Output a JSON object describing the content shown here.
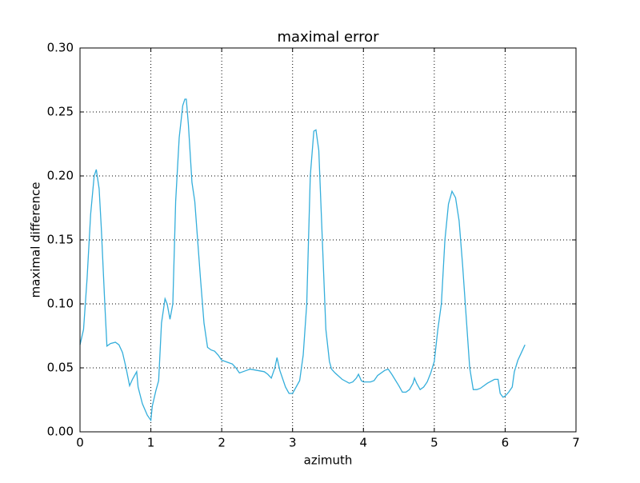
{
  "chart_data": {
    "type": "line",
    "title": "maximal error",
    "x_label": "azimuth",
    "y_label": "maximal difference",
    "x": [
      0.0,
      0.05,
      0.1,
      0.15,
      0.2,
      0.23,
      0.27,
      0.3,
      0.35,
      0.38,
      0.43,
      0.5,
      0.55,
      0.6,
      0.65,
      0.7,
      0.74,
      0.8,
      0.82,
      0.88,
      0.95,
      1.0,
      1.02,
      1.07,
      1.11,
      1.15,
      1.2,
      1.23,
      1.27,
      1.31,
      1.35,
      1.4,
      1.45,
      1.48,
      1.5,
      1.53,
      1.58,
      1.62,
      1.7,
      1.75,
      1.8,
      1.85,
      1.9,
      1.95,
      2.0,
      2.05,
      2.1,
      2.15,
      2.2,
      2.25,
      2.3,
      2.35,
      2.4,
      2.5,
      2.6,
      2.65,
      2.7,
      2.75,
      2.78,
      2.82,
      2.9,
      2.95,
      3.0,
      3.05,
      3.1,
      3.15,
      3.2,
      3.25,
      3.3,
      3.33,
      3.37,
      3.42,
      3.47,
      3.52,
      3.55,
      3.6,
      3.7,
      3.8,
      3.85,
      3.9,
      3.93,
      3.97,
      4.0,
      4.1,
      4.15,
      4.2,
      4.3,
      4.35,
      4.4,
      4.5,
      4.55,
      4.6,
      4.65,
      4.7,
      4.72,
      4.75,
      4.8,
      4.85,
      4.9,
      4.95,
      5.0,
      5.05,
      5.1,
      5.15,
      5.2,
      5.25,
      5.3,
      5.35,
      5.4,
      5.45,
      5.5,
      5.55,
      5.6,
      5.65,
      5.75,
      5.85,
      5.9,
      5.93,
      5.97,
      6.0,
      6.05,
      6.1,
      6.13,
      6.18,
      6.23,
      6.28
    ],
    "series": [
      {
        "color": "#34aedb",
        "values": [
          0.068,
          0.08,
          0.12,
          0.17,
          0.2,
          0.205,
          0.19,
          0.16,
          0.1,
          0.067,
          0.069,
          0.07,
          0.068,
          0.062,
          0.05,
          0.036,
          0.041,
          0.047,
          0.035,
          0.022,
          0.013,
          0.009,
          0.02,
          0.032,
          0.04,
          0.085,
          0.104,
          0.1,
          0.088,
          0.1,
          0.18,
          0.23,
          0.255,
          0.26,
          0.26,
          0.24,
          0.195,
          0.18,
          0.12,
          0.085,
          0.066,
          0.064,
          0.063,
          0.06,
          0.056,
          0.055,
          0.054,
          0.053,
          0.05,
          0.046,
          0.047,
          0.048,
          0.049,
          0.048,
          0.047,
          0.045,
          0.042,
          0.05,
          0.058,
          0.048,
          0.035,
          0.03,
          0.03,
          0.035,
          0.04,
          0.06,
          0.1,
          0.2,
          0.235,
          0.236,
          0.22,
          0.15,
          0.08,
          0.055,
          0.049,
          0.046,
          0.041,
          0.038,
          0.039,
          0.042,
          0.045,
          0.04,
          0.039,
          0.039,
          0.04,
          0.044,
          0.048,
          0.049,
          0.045,
          0.036,
          0.031,
          0.031,
          0.033,
          0.038,
          0.042,
          0.038,
          0.033,
          0.035,
          0.039,
          0.046,
          0.055,
          0.08,
          0.1,
          0.15,
          0.178,
          0.188,
          0.183,
          0.165,
          0.13,
          0.09,
          0.05,
          0.033,
          0.033,
          0.034,
          0.038,
          0.041,
          0.041,
          0.03,
          0.027,
          0.028,
          0.031,
          0.035,
          0.047,
          0.056,
          0.062,
          0.068
        ]
      }
    ],
    "xlim": [
      0,
      7
    ],
    "xticks": [
      0,
      1,
      2,
      3,
      4,
      5,
      6,
      7
    ],
    "ylim": [
      0,
      0.3
    ],
    "yticks": [
      {
        "value": 0,
        "label": "0.00"
      },
      {
        "value": 0.05,
        "label": "0.05"
      },
      {
        "value": 0.1,
        "label": "0.10"
      },
      {
        "value": 0.15,
        "label": "0.15"
      },
      {
        "value": 0.2,
        "label": "0.20"
      },
      {
        "value": 0.25,
        "label": "0.25"
      },
      {
        "value": 0.3,
        "label": "0.30"
      }
    ],
    "grid": true
  }
}
